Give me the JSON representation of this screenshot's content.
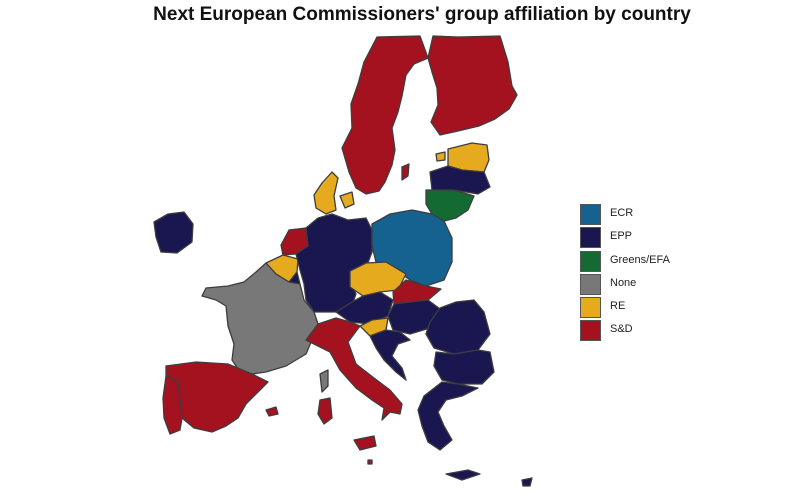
{
  "title": "Next European Commissioners' group affiliation by country",
  "colors": {
    "ECR": "#15618f",
    "EPP": "#1a1650",
    "Greens/EFA": "#136b31",
    "None": "#787878",
    "RE": "#e6aa1e",
    "S&D": "#a4121f",
    "border": "#3d3d3d"
  },
  "legend": {
    "items": [
      {
        "label": "ECR",
        "color": "#15618f"
      },
      {
        "label": "EPP",
        "color": "#1a1650"
      },
      {
        "label": "Greens/EFA",
        "color": "#136b31"
      },
      {
        "label": "None",
        "color": "#787878"
      },
      {
        "label": "RE",
        "color": "#e6aa1e"
      },
      {
        "label": "S&D",
        "color": "#a4121f"
      }
    ]
  },
  "countries": [
    {
      "name": "Sweden",
      "group": "S&D"
    },
    {
      "name": "Finland",
      "group": "S&D"
    },
    {
      "name": "Estonia",
      "group": "RE"
    },
    {
      "name": "Latvia",
      "group": "EPP"
    },
    {
      "name": "Lithuania",
      "group": "Greens/EFA"
    },
    {
      "name": "Denmark",
      "group": "RE"
    },
    {
      "name": "Ireland",
      "group": "EPP"
    },
    {
      "name": "Netherlands",
      "group": "S&D"
    },
    {
      "name": "Belgium",
      "group": "RE"
    },
    {
      "name": "Luxembourg",
      "group": "EPP"
    },
    {
      "name": "Germany",
      "group": "EPP"
    },
    {
      "name": "Poland",
      "group": "ECR"
    },
    {
      "name": "Czech Republic",
      "group": "RE"
    },
    {
      "name": "Slovakia",
      "group": "S&D"
    },
    {
      "name": "Austria",
      "group": "EPP"
    },
    {
      "name": "Hungary",
      "group": "EPP"
    },
    {
      "name": "Slovenia",
      "group": "RE"
    },
    {
      "name": "Croatia",
      "group": "EPP"
    },
    {
      "name": "Romania",
      "group": "EPP"
    },
    {
      "name": "Bulgaria",
      "group": "EPP"
    },
    {
      "name": "Greece",
      "group": "EPP"
    },
    {
      "name": "France",
      "group": "None"
    },
    {
      "name": "Spain",
      "group": "S&D"
    },
    {
      "name": "Portugal",
      "group": "S&D"
    },
    {
      "name": "Italy",
      "group": "S&D"
    },
    {
      "name": "Malta",
      "group": "S&D"
    },
    {
      "name": "Cyprus",
      "group": "EPP"
    }
  ]
}
